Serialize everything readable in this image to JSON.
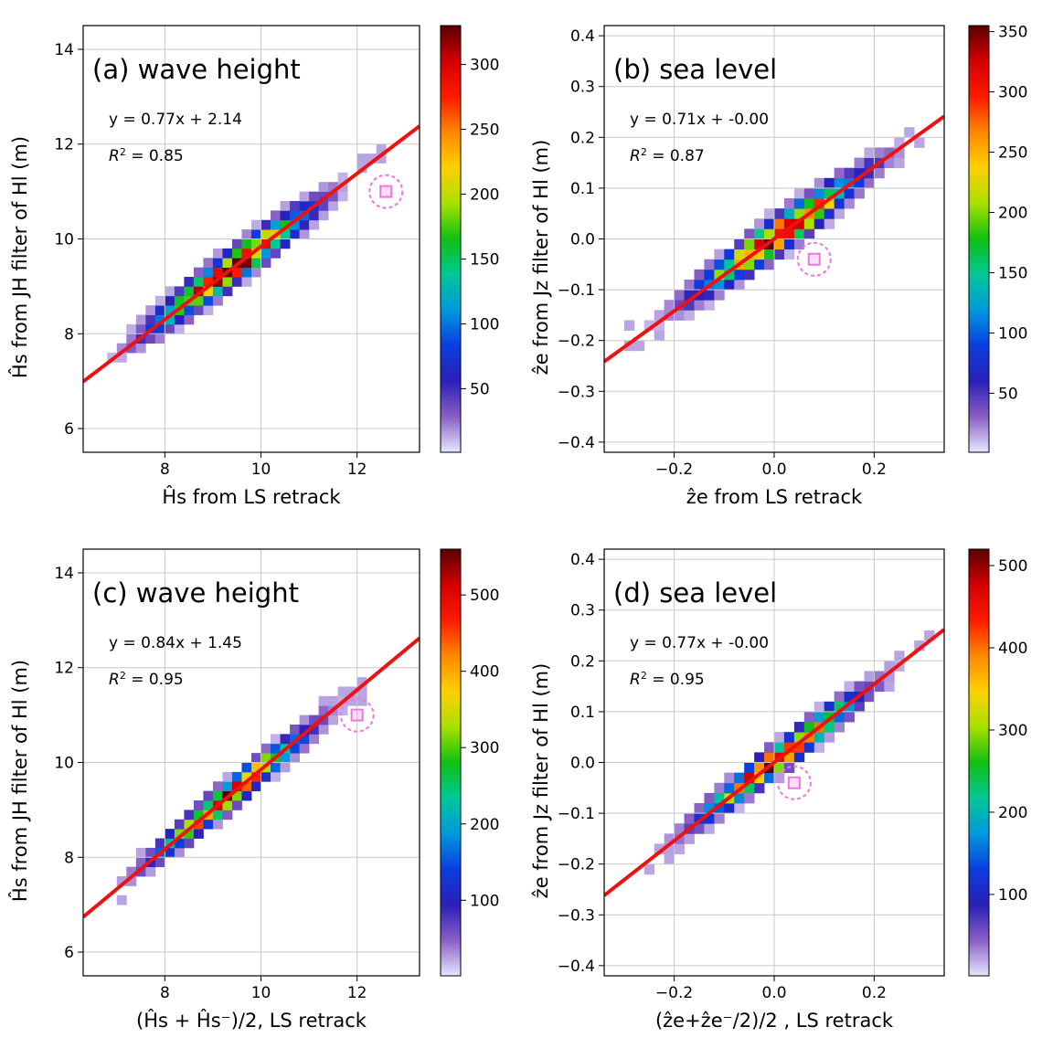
{
  "chart_data": [
    {
      "type": "heatmap",
      "title": "(a) wave height",
      "xlabel": "Ĥs from LS retrack",
      "ylabel": "Ĥs from JH filter of Hl (m)",
      "xlim": [
        6.3,
        13.3
      ],
      "ylim": [
        5.5,
        14.5
      ],
      "xticks": [
        8,
        10,
        12
      ],
      "yticks": [
        6,
        8,
        10,
        12,
        14
      ],
      "xtick_labels": [
        "8",
        "10",
        "12"
      ],
      "ytick_labels": [
        "6",
        "8",
        "10",
        "12",
        "14"
      ],
      "grid": true,
      "fit": {
        "slope": 0.77,
        "intercept": 2.14,
        "equation": "y =  0.77x + 2.14",
        "r2_label": "R",
        "r2_text": " = 0.85"
      },
      "cloud": {
        "x_center": 9.3,
        "y_center": 9.3,
        "x_min": 6.9,
        "x_max": 12.6,
        "cell": 0.2
      },
      "marker": {
        "x": 12.6,
        "y": 11.0
      },
      "colorbar": {
        "min": 1,
        "max": 330,
        "ticks": [
          50,
          100,
          150,
          200,
          250,
          300
        ],
        "tick_labels": [
          "50",
          "100",
          "150",
          "200",
          "250",
          "300"
        ]
      }
    },
    {
      "type": "heatmap",
      "title": "(b) sea level",
      "xlabel": "ẑe from LS retrack",
      "ylabel": "ẑe from Jz filter of Hl (m)",
      "xlim": [
        -0.34,
        0.34
      ],
      "ylim": [
        -0.42,
        0.42
      ],
      "xticks": [
        -0.2,
        0.0,
        0.2
      ],
      "yticks": [
        -0.4,
        -0.3,
        -0.2,
        -0.1,
        0.0,
        0.1,
        0.2,
        0.3,
        0.4
      ],
      "xtick_labels": [
        "−0.2",
        "0.0",
        "0.2"
      ],
      "ytick_labels": [
        "−0.4",
        "−0.3",
        "−0.2",
        "−0.1",
        "0.0",
        "0.1",
        "0.2",
        "0.3",
        "0.4"
      ],
      "grid": true,
      "fit": {
        "slope": 0.71,
        "intercept": 0.0,
        "equation": "y =  0.71x + -0.00",
        "r2_label": "R",
        "r2_text": " = 0.87"
      },
      "cloud": {
        "x_center": 0.0,
        "y_center": 0.0,
        "x_min": -0.28,
        "x_max": 0.3,
        "cell": 0.02
      },
      "marker": {
        "x": 0.08,
        "y": -0.04
      },
      "colorbar": {
        "min": 1,
        "max": 355,
        "ticks": [
          50,
          100,
          150,
          200,
          250,
          300,
          350
        ],
        "tick_labels": [
          "50",
          "100",
          "150",
          "200",
          "250",
          "300",
          "350"
        ]
      }
    },
    {
      "type": "heatmap",
      "title": "(c) wave height",
      "xlabel": "(Ĥs + Ĥs⁻)/2, LS retrack",
      "ylabel": "Ĥs from JH filter of Hl (m)",
      "xlim": [
        6.3,
        13.3
      ],
      "ylim": [
        5.5,
        14.5
      ],
      "xticks": [
        8,
        10,
        12
      ],
      "yticks": [
        6,
        8,
        10,
        12,
        14
      ],
      "xtick_labels": [
        "8",
        "10",
        "12"
      ],
      "ytick_labels": [
        "6",
        "8",
        "10",
        "12",
        "14"
      ],
      "grid": true,
      "fit": {
        "slope": 0.84,
        "intercept": 1.45,
        "equation": "y =  0.84x + 1.45",
        "r2_label": "R",
        "r2_text": " = 0.95"
      },
      "cloud": {
        "x_center": 9.3,
        "y_center": 9.3,
        "x_min": 6.9,
        "x_max": 12.0,
        "cell": 0.2
      },
      "marker": {
        "x": 12.0,
        "y": 11.0
      },
      "colorbar": {
        "min": 1,
        "max": 560,
        "ticks": [
          100,
          200,
          300,
          400,
          500
        ],
        "tick_labels": [
          "100",
          "200",
          "300",
          "400",
          "500"
        ]
      }
    },
    {
      "type": "heatmap",
      "title": "(d) sea level",
      "xlabel": "(ẑe+ẑe⁻/2)/2 , LS retrack",
      "ylabel": "ẑe from Jz filter of Hl (m)",
      "xlim": [
        -0.34,
        0.34
      ],
      "ylim": [
        -0.42,
        0.42
      ],
      "xticks": [
        -0.2,
        0.0,
        0.2
      ],
      "yticks": [
        -0.4,
        -0.3,
        -0.2,
        -0.1,
        0.0,
        0.1,
        0.2,
        0.3,
        0.4
      ],
      "xtick_labels": [
        "−0.2",
        "0.0",
        "0.2"
      ],
      "ytick_labels": [
        "−0.4",
        "−0.3",
        "−0.2",
        "−0.1",
        "0.0",
        "0.1",
        "0.2",
        "0.3",
        "0.4"
      ],
      "grid": true,
      "fit": {
        "slope": 0.77,
        "intercept": 0.0,
        "equation": "y =  0.77x + -0.00",
        "r2_label": "R",
        "r2_text": " = 0.95"
      },
      "cloud": {
        "x_center": 0.0,
        "y_center": 0.0,
        "x_min": -0.26,
        "x_max": 0.3,
        "cell": 0.02
      },
      "marker": {
        "x": 0.04,
        "y": -0.04
      },
      "colorbar": {
        "min": 1,
        "max": 520,
        "ticks": [
          100,
          200,
          300,
          400,
          500
        ],
        "tick_labels": [
          "100",
          "200",
          "300",
          "400",
          "500"
        ]
      }
    }
  ],
  "colors": {
    "fit_line": "#ee1111",
    "marker": "#ee77dd",
    "grid": "#c8c8c8",
    "colormap": [
      "#e6e6ff",
      "#8a5fc4",
      "#2a1fb8",
      "#0a3ee0",
      "#0099dd",
      "#00c896",
      "#10c010",
      "#a8e000",
      "#ffd000",
      "#ff8800",
      "#ff1a00",
      "#d20000",
      "#5a0000"
    ]
  }
}
